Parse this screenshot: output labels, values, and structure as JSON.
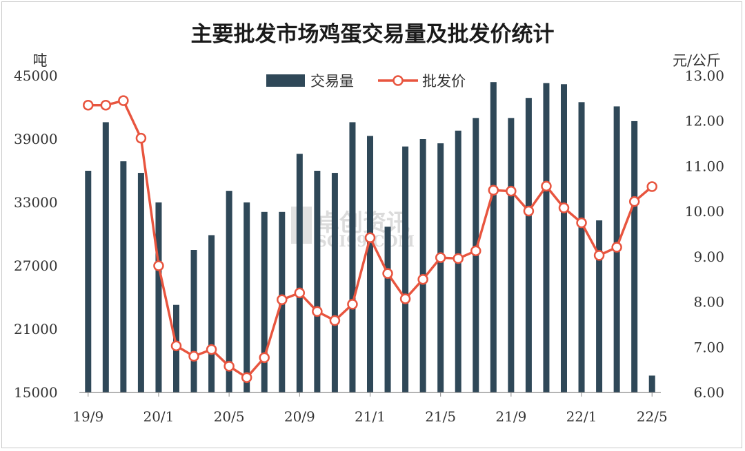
{
  "chart_data": {
    "type": "bar",
    "title": "主要批发市场鸡蛋交易量及批发价统计",
    "left_unit": "吨",
    "right_unit": "元/公斤",
    "watermark": "卓创资讯",
    "watermark_sub": "SCI99.COM",
    "y_left": {
      "min": 15000,
      "max": 45000,
      "ticks": [
        "45000",
        "39000",
        "33000",
        "27000",
        "21000",
        "15000"
      ]
    },
    "y_right": {
      "min": 6,
      "max": 13,
      "ticks": [
        "13.00",
        "12.00",
        "11.00",
        "10.00",
        "9.00",
        "8.00",
        "7.00",
        "6.00"
      ]
    },
    "x_tick_labels": [
      "19/9",
      "20/1",
      "20/5",
      "20/9",
      "21/1",
      "21/5",
      "21/9",
      "22/1",
      "22/5"
    ],
    "categories": [
      "19/9",
      "19/10",
      "19/11",
      "19/12",
      "20/1",
      "20/2",
      "20/3",
      "20/4",
      "20/5",
      "20/6",
      "20/7",
      "20/8",
      "20/9",
      "20/10",
      "20/11",
      "20/12",
      "21/1",
      "21/2",
      "21/3",
      "21/4",
      "21/5",
      "21/6",
      "21/7",
      "21/8",
      "21/9",
      "21/10",
      "21/11",
      "21/12",
      "22/1",
      "22/2",
      "22/3",
      "22/4",
      "22/5"
    ],
    "series": [
      {
        "name": "交易量",
        "kind": "bar",
        "color": "#2f4858",
        "values": [
          36000,
          40600,
          36900,
          35800,
          33000,
          23300,
          28500,
          29900,
          34100,
          33000,
          32100,
          32100,
          37600,
          36000,
          35800,
          40600,
          39300,
          30700,
          38300,
          39000,
          38600,
          39800,
          41000,
          44400,
          41000,
          42900,
          44300,
          44200,
          42500,
          31300,
          42100,
          40700,
          16600
        ]
      },
      {
        "name": "批发价",
        "kind": "line",
        "color": "#e8553f",
        "values": [
          12.35,
          12.35,
          12.45,
          11.62,
          8.8,
          7.03,
          6.8,
          6.95,
          6.58,
          6.33,
          6.77,
          8.05,
          8.2,
          7.79,
          7.59,
          7.95,
          9.42,
          8.63,
          8.07,
          8.5,
          8.98,
          8.96,
          9.13,
          10.47,
          10.45,
          10.01,
          10.56,
          10.08,
          9.75,
          9.03,
          9.21,
          10.22,
          10.55
        ]
      }
    ],
    "legend_position": "top-center",
    "grid": false
  }
}
